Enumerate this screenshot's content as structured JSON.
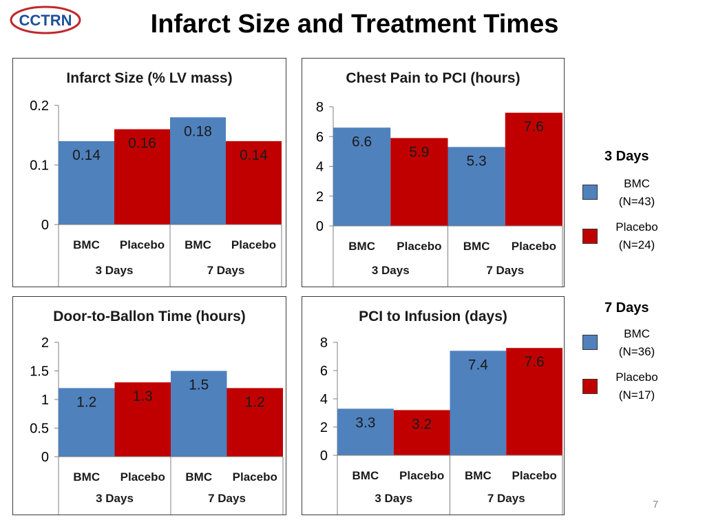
{
  "slide": {
    "title": "Infarct Size and Treatment Times",
    "logo_text": "CCTRN",
    "page_number": "7"
  },
  "colors": {
    "bmc": "#4F81BD",
    "placebo": "#C00000",
    "logo": "#C0282D"
  },
  "legend": {
    "groups": [
      {
        "title": "3 Days",
        "items": [
          {
            "label": "BMC",
            "n": "(N=43)",
            "color": "#4F81BD"
          },
          {
            "label": "Placebo",
            "n": "(N=24)",
            "color": "#C00000"
          }
        ]
      },
      {
        "title": "7 Days",
        "items": [
          {
            "label": "BMC",
            "n": "(N=36)",
            "color": "#4F81BD"
          },
          {
            "label": "Placebo",
            "n": "(N=17)",
            "color": "#C00000"
          }
        ]
      }
    ]
  },
  "chart_data": [
    {
      "type": "bar",
      "title": "Infarct Size (% LV mass)",
      "categories": [
        "BMC",
        "Placebo",
        "BMC",
        "Placebo"
      ],
      "groups": [
        "3 Days",
        "7 Days"
      ],
      "values": [
        0.14,
        0.16,
        0.18,
        0.14
      ],
      "labels": [
        "0.14",
        "0.16",
        "0.18",
        "0.14"
      ],
      "ylim": [
        0,
        0.2
      ],
      "yticks": [
        "0",
        "0.1",
        "0.2"
      ],
      "ytick_values": [
        0,
        0.1,
        0.2
      ]
    },
    {
      "type": "bar",
      "title": "Chest Pain to PCI (hours)",
      "categories": [
        "BMC",
        "Placebo",
        "BMC",
        "Placebo"
      ],
      "groups": [
        "3 Days",
        "7 Days"
      ],
      "values": [
        6.6,
        5.9,
        5.3,
        7.6
      ],
      "labels": [
        "6.6",
        "5.9",
        "5.3",
        "7.6"
      ],
      "ylim": [
        0,
        8
      ],
      "yticks": [
        "0",
        "2",
        "4",
        "6",
        "8"
      ],
      "ytick_values": [
        0,
        2,
        4,
        6,
        8
      ]
    },
    {
      "type": "bar",
      "title": "Door-to-Ballon  Time (hours)",
      "categories": [
        "BMC",
        "Placebo",
        "BMC",
        "Placebo"
      ],
      "groups": [
        "3 Days",
        "7 Days"
      ],
      "values": [
        1.2,
        1.3,
        1.5,
        1.2
      ],
      "labels": [
        "1.2",
        "1.3",
        "1.5",
        "1.2"
      ],
      "ylim": [
        0,
        2
      ],
      "yticks": [
        "0",
        "0.5",
        "1",
        "1.5",
        "2"
      ],
      "ytick_values": [
        0,
        0.5,
        1,
        1.5,
        2
      ]
    },
    {
      "type": "bar",
      "title": "PCI to Infusion (days)",
      "categories": [
        "BMC",
        "Placebo",
        "BMC",
        "Placebo"
      ],
      "groups": [
        "3 Days",
        "7 Days"
      ],
      "values": [
        3.3,
        3.2,
        7.4,
        7.6
      ],
      "labels": [
        "3.3",
        "3.2",
        "7.4",
        "7.6"
      ],
      "ylim": [
        0,
        8
      ],
      "yticks": [
        "0",
        "2",
        "4",
        "6",
        "8"
      ],
      "ytick_values": [
        0,
        2,
        4,
        6,
        8
      ]
    }
  ]
}
